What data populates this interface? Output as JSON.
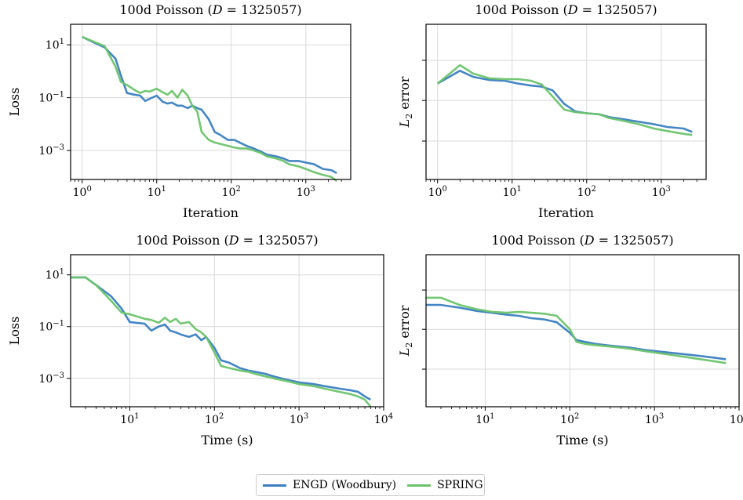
{
  "colors": {
    "engd": "#3a7fc0",
    "spring": "#6cc36c"
  },
  "legend": {
    "engd_label": "ENGD (Woodbury)",
    "spring_label": "SPRING"
  },
  "chart_data": [
    {
      "type": "line",
      "id": "loss-iter",
      "title": "100d Poisson (D = 1325057)",
      "xlabel": "Iteration",
      "ylabel": "Loss",
      "xscale": "log",
      "yscale": "log",
      "xlim": [
        0.7,
        4000
      ],
      "ylim": [
        8e-05,
        60
      ],
      "xticks": [
        1,
        10,
        100,
        1000
      ],
      "xticklabels": [
        "10^0",
        "10^1",
        "10^2",
        "10^3"
      ],
      "yticks": [
        0.001,
        0.1,
        10
      ],
      "yticklabels": [
        "10^-3",
        "10^-1",
        "10^1"
      ],
      "series": [
        {
          "name": "ENGD (Woodbury)",
          "color": "#3a7fc0",
          "x": [
            1,
            2,
            2.8,
            3.3,
            4,
            5,
            6,
            7,
            8,
            10,
            12,
            14,
            16,
            19,
            22,
            26,
            30,
            35,
            40,
            50,
            60,
            70,
            90,
            110,
            130,
            160,
            200,
            250,
            300,
            400,
            500,
            600,
            800,
            1000,
            1300,
            1700,
            2200,
            2600
          ],
          "y": [
            20,
            8,
            3,
            0.7,
            0.15,
            0.13,
            0.12,
            0.075,
            0.09,
            0.12,
            0.07,
            0.06,
            0.065,
            0.05,
            0.05,
            0.04,
            0.05,
            0.04,
            0.035,
            0.015,
            0.005,
            0.004,
            0.0025,
            0.0025,
            0.002,
            0.0015,
            0.0012,
            0.0009,
            0.0007,
            0.0006,
            0.0005,
            0.0004,
            0.0004,
            0.00035,
            0.0003,
            0.0002,
            0.00018,
            0.00014
          ]
        },
        {
          "name": "SPRING",
          "color": "#6cc36c",
          "x": [
            1,
            2,
            2.8,
            3.3,
            4,
            5,
            6,
            7,
            8,
            10,
            12,
            14,
            16,
            19,
            22,
            26,
            30,
            35,
            40,
            50,
            60,
            70,
            90,
            110,
            130,
            160,
            200,
            250,
            300,
            400,
            500,
            600,
            800,
            1000,
            1300,
            1700,
            2200,
            2600
          ],
          "y": [
            20,
            9,
            1.5,
            0.4,
            0.3,
            0.2,
            0.15,
            0.18,
            0.17,
            0.22,
            0.16,
            0.13,
            0.18,
            0.1,
            0.2,
            0.12,
            0.05,
            0.03,
            0.005,
            0.0025,
            0.002,
            0.0018,
            0.0015,
            0.0013,
            0.0012,
            0.0012,
            0.001,
            0.0008,
            0.0006,
            0.0005,
            0.0004,
            0.0003,
            0.00025,
            0.0002,
            0.00015,
            0.00012,
            0.0001,
            7e-05
          ]
        }
      ]
    },
    {
      "type": "line",
      "id": "l2-iter",
      "title": "100d Poisson (D = 1325057)",
      "xlabel": "Iteration",
      "ylabel": "L2 error",
      "xscale": "log",
      "yscale": "log",
      "xlim": [
        0.7,
        4000
      ],
      "ylim": [
        0.025,
        35
      ],
      "xticks": [
        1,
        10,
        100,
        1000
      ],
      "xticklabels": [
        "10^0",
        "10^1",
        "10^2",
        "10^3"
      ],
      "yticks": [
        0.15,
        1,
        6.5
      ],
      "yticklabels": [
        "",
        "",
        ""
      ],
      "series": [
        {
          "name": "ENGD (Woodbury)",
          "color": "#3a7fc0",
          "x": [
            1,
            2,
            3,
            5,
            8,
            12,
            18,
            25,
            35,
            50,
            70,
            100,
            150,
            200,
            300,
            500,
            800,
            1200,
            2000,
            2600
          ],
          "y": [
            2.2,
            4.0,
            3.0,
            2.6,
            2.5,
            2.2,
            2.0,
            1.9,
            1.6,
            0.85,
            0.6,
            0.55,
            0.52,
            0.46,
            0.42,
            0.37,
            0.33,
            0.29,
            0.27,
            0.23
          ]
        },
        {
          "name": "SPRING",
          "color": "#6cc36c",
          "x": [
            1,
            2,
            3,
            5,
            8,
            12,
            18,
            25,
            35,
            50,
            70,
            100,
            150,
            200,
            300,
            500,
            800,
            1200,
            2000,
            2600
          ],
          "y": [
            2.2,
            5.2,
            3.5,
            2.8,
            2.7,
            2.7,
            2.5,
            2.1,
            1.2,
            0.65,
            0.58,
            0.55,
            0.52,
            0.44,
            0.39,
            0.33,
            0.27,
            0.24,
            0.21,
            0.2
          ]
        }
      ]
    },
    {
      "type": "line",
      "id": "loss-time",
      "title": "100d Poisson (D = 1325057)",
      "xlabel": "Time (s)",
      "ylabel": "Loss",
      "xscale": "log",
      "yscale": "log",
      "xlim": [
        2,
        10000
      ],
      "ylim": [
        8e-05,
        60
      ],
      "xticks": [
        10,
        100,
        1000,
        10000
      ],
      "xticklabels": [
        "10^1",
        "10^2",
        "10^3",
        "10^4"
      ],
      "yticks": [
        0.001,
        0.1,
        10
      ],
      "yticklabels": [
        "10^-3",
        "10^-1",
        "10^1"
      ],
      "series": [
        {
          "name": "ENGD (Woodbury)",
          "color": "#3a7fc0",
          "x": [
            2,
            3,
            4,
            6,
            8,
            10,
            12,
            15,
            18,
            22,
            26,
            30,
            35,
            40,
            50,
            60,
            70,
            80,
            100,
            120,
            150,
            200,
            250,
            300,
            400,
            500,
            700,
            1000,
            1500,
            2000,
            3000,
            4000,
            5000,
            6000,
            7000
          ],
          "y": [
            8,
            8,
            4,
            1.5,
            0.5,
            0.15,
            0.14,
            0.13,
            0.07,
            0.1,
            0.12,
            0.07,
            0.06,
            0.05,
            0.04,
            0.05,
            0.03,
            0.04,
            0.015,
            0.005,
            0.004,
            0.0025,
            0.002,
            0.0018,
            0.0015,
            0.0012,
            0.0009,
            0.0007,
            0.0006,
            0.0005,
            0.0004,
            0.00035,
            0.0003,
            0.0002,
            0.00015
          ]
        },
        {
          "name": "SPRING",
          "color": "#6cc36c",
          "x": [
            2,
            3,
            4,
            6,
            8,
            10,
            12,
            15,
            18,
            22,
            26,
            30,
            35,
            40,
            50,
            60,
            70,
            80,
            100,
            120,
            150,
            200,
            250,
            300,
            400,
            500,
            700,
            1000,
            1500,
            2000,
            3000,
            4000,
            5000,
            6000,
            7000
          ],
          "y": [
            8,
            8,
            4,
            1.0,
            0.35,
            0.3,
            0.25,
            0.2,
            0.18,
            0.14,
            0.22,
            0.15,
            0.2,
            0.13,
            0.15,
            0.08,
            0.06,
            0.04,
            0.01,
            0.003,
            0.0025,
            0.002,
            0.0018,
            0.0015,
            0.0012,
            0.001,
            0.0008,
            0.0006,
            0.0005,
            0.0004,
            0.0003,
            0.00025,
            0.0002,
            0.00015,
            8e-05
          ]
        }
      ]
    },
    {
      "type": "line",
      "id": "l2-time",
      "title": "100d Poisson (D = 1325057)",
      "xlabel": "Time (s)",
      "ylabel": "L2 error",
      "xscale": "log",
      "yscale": "log",
      "xlim": [
        2,
        10000
      ],
      "ylim": [
        0.025,
        35
      ],
      "xticks": [
        10,
        100,
        1000,
        10000
      ],
      "xticklabels": [
        "10^1",
        "10^2",
        "10^3",
        "10^4"
      ],
      "yticks": [
        0.15,
        1,
        6.5
      ],
      "yticklabels": [
        "",
        "",
        ""
      ],
      "series": [
        {
          "name": "ENGD (Woodbury)",
          "color": "#3a7fc0",
          "x": [
            2,
            3,
            5,
            8,
            12,
            18,
            25,
            35,
            50,
            70,
            100,
            120,
            150,
            200,
            300,
            500,
            800,
            1500,
            3000,
            5000,
            7000
          ],
          "y": [
            3.2,
            3.2,
            2.8,
            2.4,
            2.2,
            2.0,
            1.9,
            1.7,
            1.6,
            1.4,
            0.85,
            0.6,
            0.55,
            0.5,
            0.46,
            0.42,
            0.37,
            0.33,
            0.29,
            0.26,
            0.24
          ]
        },
        {
          "name": "SPRING",
          "color": "#6cc36c",
          "x": [
            2,
            3,
            5,
            8,
            12,
            18,
            25,
            35,
            50,
            70,
            100,
            120,
            150,
            200,
            300,
            500,
            800,
            1500,
            3000,
            5000,
            7000
          ],
          "y": [
            4.5,
            4.5,
            3.2,
            2.6,
            2.3,
            2.2,
            2.3,
            2.2,
            2.1,
            1.9,
            1.0,
            0.55,
            0.5,
            0.47,
            0.44,
            0.4,
            0.35,
            0.3,
            0.25,
            0.22,
            0.2
          ]
        }
      ]
    }
  ]
}
